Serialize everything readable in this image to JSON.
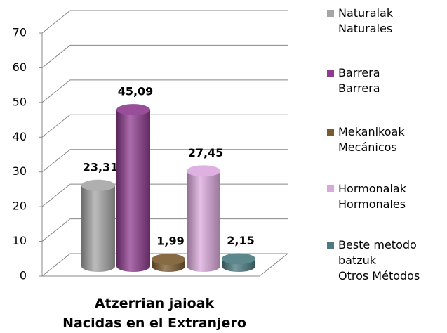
{
  "chart_data": {
    "type": "bar3d",
    "categories": [
      "Atzerrian jaioak\nNacidas en el Extranjero"
    ],
    "series": [
      {
        "name": "Naturalak\nNaturales",
        "color": "#a6a6a6",
        "values": [
          23.31
        ],
        "value_labels": [
          "23,31"
        ]
      },
      {
        "name": "Barrera\nBarrera",
        "color": "#8e3a8e",
        "values": [
          45.09
        ],
        "value_labels": [
          "45,09"
        ]
      },
      {
        "name": "Mekanikoak\nMecánicos",
        "color": "#7a5a2e",
        "values": [
          1.99
        ],
        "value_labels": [
          "1,99"
        ]
      },
      {
        "name": "Hormonalak\nHormonales",
        "color": "#dba8dc",
        "values": [
          27.45
        ],
        "value_labels": [
          "27,45"
        ]
      },
      {
        "name": "Beste metodo\nbatzuk\nOtros Métodos",
        "color": "#4a7a80",
        "values": [
          2.15
        ],
        "value_labels": [
          "2,15"
        ]
      }
    ],
    "ylim": [
      0,
      70
    ],
    "yticks": [
      0,
      10,
      20,
      30,
      40,
      50,
      60,
      70
    ],
    "grid": true,
    "legend": "right"
  }
}
